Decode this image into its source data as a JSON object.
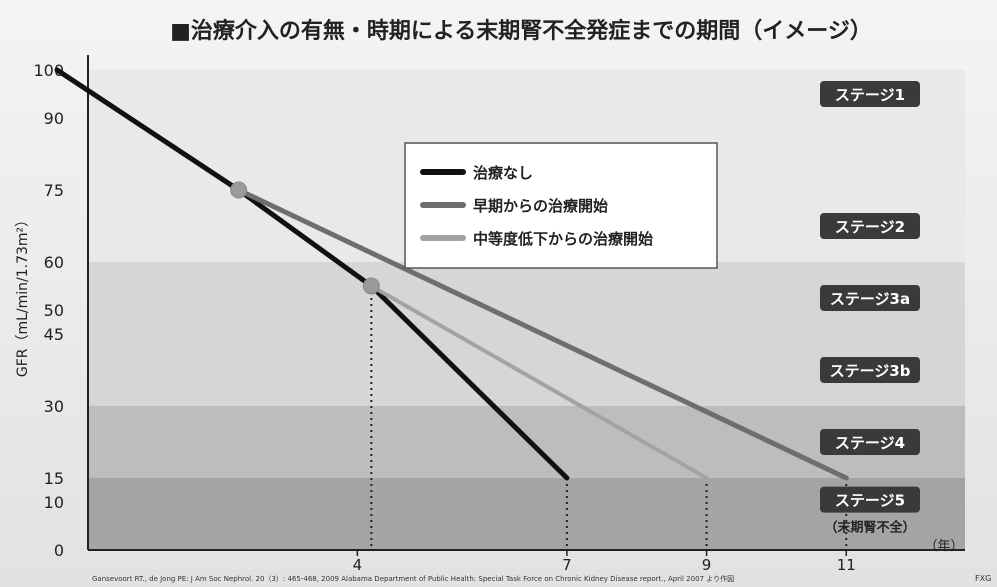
{
  "title": "■治療介入の有無・時期による末期腎不全発症までの期間（イメージ）",
  "ylabel": "GFR（mL/min/1.73m²）",
  "xunit": "（年）",
  "citation": "Gansevoort RT., de Jong PE: J Am Soc Nephrol. 20（3）: 465-468, 2009  Alabama Department of Public Health: Special Task Force on Chronic Kidney Disease report., April 2007 より作図",
  "source_mark": "FXG",
  "colors": {
    "no_treatment": "#111111",
    "early": "#6e6e6e",
    "moderate": "#a3a3a3",
    "marker": "#9a9a9a",
    "zone_stage1_2": "#e9e9e9",
    "zone_stage3": "#d6d6d6",
    "zone_stage4": "#bdbdbd",
    "zone_stage5": "#a4a4a4",
    "badge": "#3a3a3a"
  },
  "chart_data": {
    "type": "line",
    "title": "■治療介入の有無・時期による末期腎不全発症までの期間（イメージ）",
    "ylabel": "GFR（mL/min/1.73m²）",
    "xlabel": "（年）",
    "xlim": [
      0,
      12
    ],
    "ylim": [
      0,
      100
    ],
    "y_ticks": [
      0,
      10,
      15,
      30,
      45,
      50,
      60,
      75,
      90,
      100
    ],
    "x_ticks": [
      4,
      7,
      9,
      11
    ],
    "series": [
      {
        "name": "治療なし",
        "key": "no_treatment",
        "points": [
          [
            -0.3,
            100
          ],
          [
            2.3,
            75
          ],
          [
            4.2,
            55
          ],
          [
            7,
            15
          ]
        ]
      },
      {
        "name": "早期からの治療開始",
        "key": "early",
        "points": [
          [
            2.3,
            75
          ],
          [
            11,
            15
          ]
        ]
      },
      {
        "name": "中等度低下からの治療開始",
        "key": "moderate",
        "points": [
          [
            4.2,
            55
          ],
          [
            9,
            15
          ]
        ]
      }
    ],
    "markers": [
      [
        2.3,
        75
      ],
      [
        4.2,
        55
      ]
    ],
    "drop_lines": [
      [
        4.2,
        55
      ],
      [
        7,
        15
      ],
      [
        9,
        15
      ],
      [
        11,
        15
      ]
    ],
    "stages": [
      {
        "label": "ステージ1",
        "y": 95,
        "zone": "zone_stage1_2",
        "from": 90,
        "to": 100
      },
      {
        "label": "ステージ2",
        "y": 67.5,
        "zone": "zone_stage1_2",
        "from": 60,
        "to": 90
      },
      {
        "label": "ステージ3a",
        "y": 52.5,
        "zone": "zone_stage3",
        "from": 45,
        "to": 60
      },
      {
        "label": "ステージ3b",
        "y": 37.5,
        "zone": "zone_stage3",
        "from": 30,
        "to": 45
      },
      {
        "label": "ステージ4",
        "y": 22.5,
        "zone": "zone_stage4",
        "from": 15,
        "to": 30
      },
      {
        "label": "ステージ5",
        "y": 10.5,
        "zone": "zone_stage5",
        "from": 0,
        "to": 15,
        "note": "（末期腎不全）"
      }
    ],
    "legend_placement": "top-center"
  }
}
